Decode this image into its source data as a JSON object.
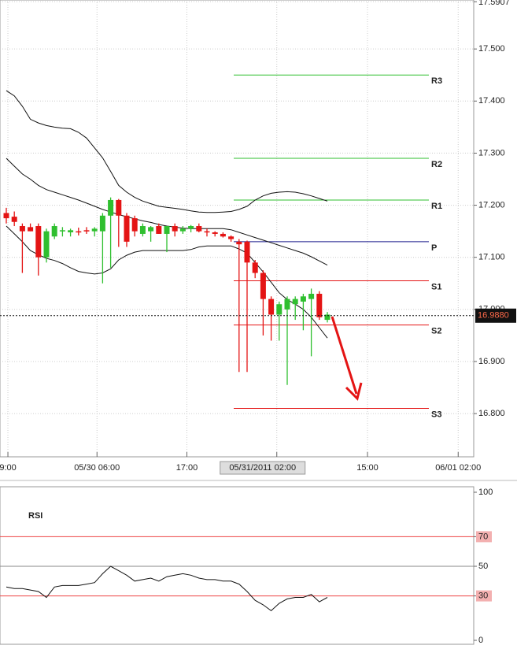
{
  "chart_data": [
    {
      "type": "candlestick",
      "ylim": [
        16.717,
        17.594
      ],
      "yticks": [
        17.5907,
        {
          "value": 17.5,
          "label": "17.500"
        },
        {
          "value": 17.4,
          "label": "17.400"
        },
        {
          "value": 17.3,
          "label": "17.300"
        },
        {
          "value": 17.2,
          "label": "17.200"
        },
        {
          "value": 17.1,
          "label": "17.100"
        },
        {
          "value": 17.0,
          "label": "17.000"
        },
        {
          "value": 16.9,
          "label": "16.900"
        },
        {
          "value": 16.8,
          "label": "16.800"
        }
      ],
      "xticks": [
        {
          "value": 0.2,
          "label": "9:00"
        },
        {
          "value": 11.3,
          "label": "05/30 06:00"
        },
        {
          "value": 22.5,
          "label": "17:00"
        },
        {
          "value": 33.7,
          "label": "05/31/2011 02:00",
          "highlight": true
        },
        {
          "value": 45,
          "label": "15:00"
        },
        {
          "value": 56.3,
          "label": "06/01 02:00"
        }
      ],
      "up_color": "#2fbf2f",
      "down_color": "#e41414",
      "grid": true,
      "open": [
        17.185,
        17.178,
        17.16,
        17.158,
        17.16,
        17.1,
        17.14,
        17.15,
        17.148,
        17.15,
        17.152,
        17.15,
        17.15,
        17.18,
        17.21,
        17.18,
        17.175,
        17.145,
        17.15,
        17.16,
        17.145,
        17.16,
        17.15,
        17.155,
        17.16,
        17.15,
        17.148,
        17.145,
        17.14,
        17.13,
        17.13,
        17.09,
        17.07,
        17.02,
        16.99,
        17.0,
        17.01,
        17.015,
        17.02,
        17.03,
        16.98
      ],
      "high": [
        17.195,
        17.188,
        17.165,
        17.165,
        17.165,
        17.155,
        17.165,
        17.158,
        17.155,
        17.157,
        17.158,
        17.158,
        17.185,
        17.215,
        17.212,
        17.185,
        17.18,
        17.165,
        17.16,
        17.165,
        17.16,
        17.165,
        17.16,
        17.162,
        17.165,
        17.155,
        17.15,
        17.148,
        17.142,
        17.135,
        17.132,
        17.095,
        17.075,
        17.025,
        17.015,
        17.025,
        17.025,
        17.03,
        17.04,
        17.035,
        16.995
      ],
      "low": [
        17.165,
        17.16,
        17.07,
        17.15,
        17.065,
        17.09,
        17.135,
        17.14,
        17.14,
        17.142,
        17.145,
        17.14,
        17.05,
        17.08,
        17.12,
        17.12,
        17.14,
        17.14,
        17.13,
        17.145,
        17.11,
        17.14,
        17.145,
        17.148,
        17.148,
        17.14,
        17.14,
        17.138,
        17.13,
        16.88,
        16.88,
        17.06,
        16.95,
        16.94,
        16.94,
        16.855,
        16.98,
        16.96,
        16.91,
        16.98,
        16.975
      ],
      "close": [
        17.175,
        17.168,
        17.15,
        17.15,
        17.1,
        17.15,
        17.16,
        17.152,
        17.152,
        17.148,
        17.15,
        17.155,
        17.18,
        17.21,
        17.18,
        17.13,
        17.15,
        17.16,
        17.158,
        17.145,
        17.16,
        17.15,
        17.155,
        17.16,
        17.15,
        17.148,
        17.145,
        17.14,
        17.135,
        17.125,
        17.09,
        17.07,
        17.02,
        16.99,
        17.01,
        17.02,
        17.02,
        17.025,
        17.03,
        16.985,
        16.99
      ],
      "bands": [
        {
          "color": "#111",
          "values": [
            17.42,
            17.41,
            17.39,
            17.365,
            17.358,
            17.353,
            17.35,
            17.348,
            17.347,
            17.34,
            17.329,
            17.31,
            17.291,
            17.265,
            17.238,
            17.225,
            17.215,
            17.208,
            17.203,
            17.198,
            17.196,
            17.194,
            17.192,
            17.189,
            17.187,
            17.186,
            17.186,
            17.187,
            17.188,
            17.192,
            17.198,
            17.21,
            17.218,
            17.223,
            17.225,
            17.226,
            17.225,
            17.222,
            17.218,
            17.213,
            17.208
          ]
        },
        {
          "color": "#111",
          "values": [
            17.29,
            17.275,
            17.26,
            17.25,
            17.238,
            17.23,
            17.225,
            17.22,
            17.215,
            17.21,
            17.204,
            17.198,
            17.192,
            17.187,
            17.182,
            17.178,
            17.174,
            17.17,
            17.167,
            17.163,
            17.16,
            17.158,
            17.156,
            17.155,
            17.155,
            17.155,
            17.155,
            17.155,
            17.153,
            17.148,
            17.143,
            17.138,
            17.133,
            17.128,
            17.123,
            17.118,
            17.113,
            17.108,
            17.101,
            17.093,
            17.085
          ]
        },
        {
          "color": "#111",
          "values": [
            17.16,
            17.145,
            17.13,
            17.113,
            17.105,
            17.098,
            17.094,
            17.088,
            17.08,
            17.073,
            17.07,
            17.068,
            17.07,
            17.078,
            17.095,
            17.104,
            17.11,
            17.113,
            17.113,
            17.113,
            17.113,
            17.113,
            17.113,
            17.115,
            17.12,
            17.122,
            17.122,
            17.122,
            17.122,
            17.116,
            17.108,
            17.09,
            17.072,
            17.052,
            17.032,
            17.019,
            17.01,
            17.0,
            16.985,
            16.965,
            16.945
          ]
        }
      ],
      "levels": [
        {
          "label": "R3",
          "value": 17.45,
          "color": "#2fbf2f"
        },
        {
          "label": "R2",
          "value": 17.29,
          "color": "#2fbf2f"
        },
        {
          "label": "R1",
          "value": 17.21,
          "color": "#2fbf2f"
        },
        {
          "label": "P",
          "value": 17.13,
          "color": "#1a1a8c"
        },
        {
          "label": "S1",
          "value": 17.055,
          "color": "#e41414"
        },
        {
          "label": "S2",
          "value": 16.97,
          "color": "#e41414"
        },
        {
          "label": "S3",
          "value": 16.81,
          "color": "#e41414"
        }
      ],
      "last_price": {
        "value": 16.988,
        "label": "16.9880"
      }
    },
    {
      "type": "line",
      "title": "RSI",
      "color": "#111",
      "ylim": [
        0,
        100
      ],
      "yticks": [
        0,
        30,
        50,
        70,
        100
      ],
      "reference_lines": [
        {
          "value": 70,
          "color": "#e44"
        },
        {
          "value": 50,
          "color": "#888"
        },
        {
          "value": 30,
          "color": "#e44"
        }
      ],
      "values": [
        36,
        35,
        35,
        34,
        33,
        29,
        36,
        37,
        37,
        37,
        38,
        39,
        45,
        50,
        47,
        44,
        40,
        41,
        42,
        40,
        43,
        44,
        45,
        44,
        42,
        41,
        41,
        40,
        40,
        38,
        33,
        27,
        24,
        20,
        25,
        28,
        29,
        29,
        31,
        26,
        29
      ]
    }
  ]
}
